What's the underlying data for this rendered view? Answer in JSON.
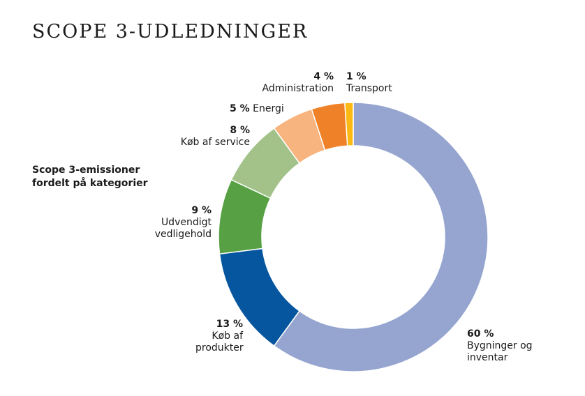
{
  "page": {
    "title": "SCOPE 3-UDLEDNINGER"
  },
  "chart_data": {
    "type": "pie",
    "subtitle": "Scope 3-emissioner fordelt på kategorier",
    "unit": "%",
    "slices": [
      {
        "pct_label": "60 %",
        "value": 60,
        "label": "Bygninger og inventar",
        "color": "#95a5d0"
      },
      {
        "pct_label": "13 %",
        "value": 13,
        "label": "Køb af produkter",
        "color": "#05569f"
      },
      {
        "pct_label": "9 %",
        "value": 9,
        "label": "Udvendigt vedligehold",
        "color": "#57a043"
      },
      {
        "pct_label": "8 %",
        "value": 8,
        "label": "Køb af service",
        "color": "#a2c28a"
      },
      {
        "pct_label": "5 %",
        "value": 5,
        "label": "Energi",
        "color": "#f8b47e"
      },
      {
        "pct_label": "4 %",
        "value": 4,
        "label": "Administration",
        "color": "#ef8228"
      },
      {
        "pct_label": "1 %",
        "value": 1,
        "label": "Transport",
        "color": "#fdb913"
      }
    ]
  }
}
